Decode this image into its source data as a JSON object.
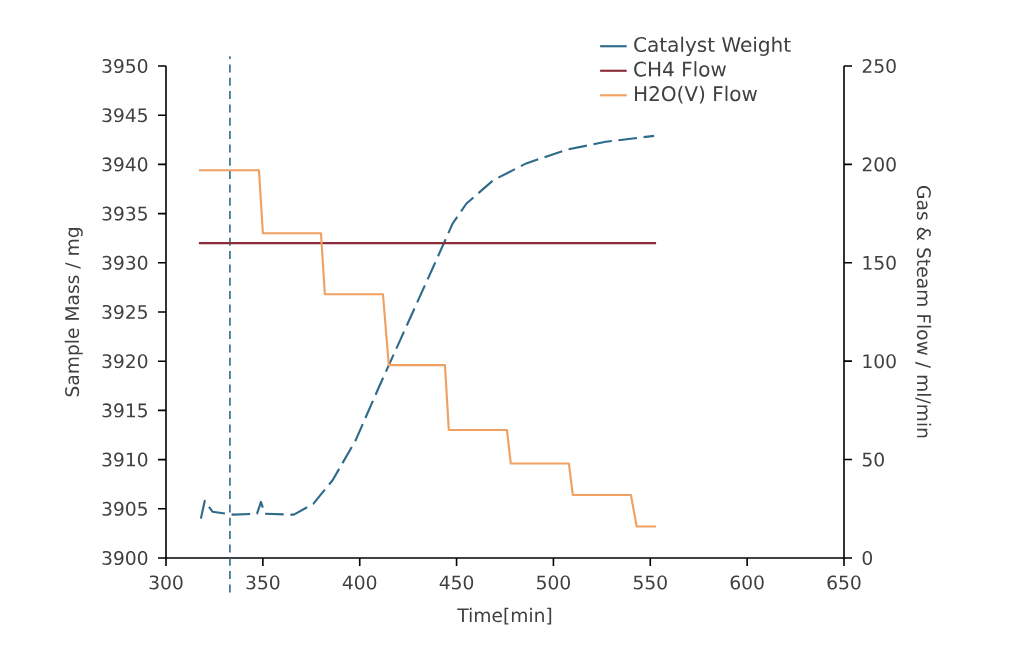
{
  "chart_data": {
    "type": "line",
    "xlabel": "Time[min]",
    "ylabel": "Sample Mass / mg",
    "y2label": "Gas & Steam Flow / ml/min",
    "xlim": [
      300,
      650
    ],
    "xticks": [
      300,
      350,
      400,
      450,
      500,
      550,
      600,
      650
    ],
    "ylim": [
      3900,
      3950
    ],
    "yticks": [
      3900,
      3905,
      3910,
      3915,
      3920,
      3925,
      3930,
      3935,
      3940,
      3945,
      3950
    ],
    "y2lim": [
      0,
      250
    ],
    "y2ticks": [
      0,
      50,
      100,
      150,
      200,
      250
    ],
    "legend": "top right",
    "grid": false,
    "ref_lines": [
      {
        "axis": "x",
        "value": 333,
        "color": "#2e6b8a",
        "line_style": "dashed"
      }
    ],
    "series": [
      {
        "name": "Catalyst Weight",
        "color": "#2e6b8a",
        "line_style": "dashed",
        "x": [
          318,
          320,
          324,
          335,
          347,
          349,
          351,
          366,
          376,
          386,
          398,
          410,
          424,
          438,
          448,
          455,
          469,
          486,
          507,
          527,
          552
        ],
        "values": [
          3904.0,
          3905.8,
          3904.7,
          3904.4,
          3904.5,
          3905.7,
          3904.5,
          3904.4,
          3905.5,
          3907.9,
          3912.0,
          3917.4,
          3923.5,
          3929.6,
          3934.0,
          3936.0,
          3938.4,
          3940.1,
          3941.5,
          3942.3,
          3942.9
        ]
      },
      {
        "name": "CH4 Flow",
        "color": "#8b2a3a",
        "axis": "y2",
        "line_style": "solid",
        "x": [
          317,
          553
        ],
        "values": [
          160,
          160
        ]
      },
      {
        "name": "H2O(V) Flow",
        "color": "#f0a060",
        "axis": "y2",
        "line_style": "solid",
        "x": [
          317,
          348,
          350,
          380,
          382,
          412,
          415,
          444,
          446,
          476,
          478,
          508,
          510,
          540,
          543,
          553
        ],
        "values": [
          197,
          197,
          165,
          165,
          134,
          134,
          98,
          98,
          65,
          65,
          48,
          48,
          32,
          32,
          16,
          16
        ]
      }
    ]
  }
}
